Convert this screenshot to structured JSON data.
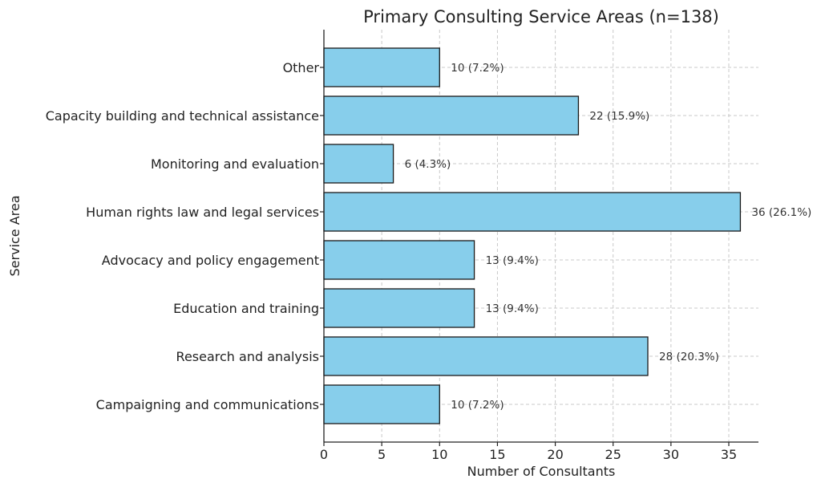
{
  "chart_data": {
    "type": "bar",
    "orientation": "horizontal",
    "title": "Primary Consulting Service Areas (n=138)",
    "xlabel": "Number of Consultants",
    "ylabel": "Service Area",
    "xlim": [
      0,
      37.8
    ],
    "xticks": [
      0,
      5,
      10,
      15,
      20,
      25,
      30,
      35
    ],
    "grid": true,
    "bar_color": "#87ceeb",
    "categories": [
      "Other",
      "Capacity building and technical assistance",
      "Monitoring and evaluation",
      "Human rights law and legal services",
      "Advocacy and policy engagement",
      "Education and training",
      "Research and analysis",
      "Campaigning and communications"
    ],
    "values": [
      10,
      22,
      6,
      36,
      13,
      13,
      28,
      10
    ],
    "data_labels": [
      "10 (7.2%)",
      "22 (15.9%)",
      "6 (4.3%)",
      "36 (26.1%)",
      "13 (9.4%)",
      "13 (9.4%)",
      "28 (20.3%)",
      "10 (7.2%)"
    ]
  }
}
